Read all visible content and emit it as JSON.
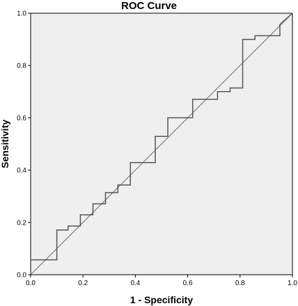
{
  "chart_data": {
    "type": "line",
    "title": "ROC Curve",
    "xlabel": "1 - Specificity",
    "ylabel": "Sensitivity",
    "xlim": [
      0.0,
      1.0
    ],
    "ylim": [
      0.0,
      1.0
    ],
    "x_ticks": [
      "0.0",
      "0.2",
      "0.4",
      "0.6",
      "0.8",
      "1.0"
    ],
    "y_ticks": [
      "0.0",
      "0.2",
      "0.4",
      "0.6",
      "0.8",
      "1.0"
    ],
    "grid": false,
    "legend": "none",
    "colors": {
      "plot_background": "#efefef",
      "curve": "#555555",
      "reference": "#808080",
      "frame": "#000000"
    },
    "series": [
      {
        "style": "step",
        "x": [
          0.0,
          0.0,
          0.1,
          0.1,
          0.143,
          0.143,
          0.19,
          0.19,
          0.238,
          0.238,
          0.286,
          0.286,
          0.333,
          0.333,
          0.381,
          0.381,
          0.476,
          0.476,
          0.524,
          0.524,
          0.619,
          0.619,
          0.714,
          0.714,
          0.762,
          0.762,
          0.81,
          0.81,
          0.857,
          0.857,
          0.952,
          0.952,
          1.0
        ],
        "y": [
          0.0,
          0.057,
          0.057,
          0.171,
          0.171,
          0.186,
          0.186,
          0.229,
          0.229,
          0.271,
          0.271,
          0.314,
          0.314,
          0.343,
          0.343,
          0.429,
          0.429,
          0.529,
          0.529,
          0.6,
          0.6,
          0.671,
          0.671,
          0.7,
          0.7,
          0.714,
          0.714,
          0.9,
          0.9,
          0.914,
          0.914,
          0.957,
          1.0
        ]
      },
      {
        "style": "reference",
        "x": [
          0.0,
          1.0
        ],
        "y": [
          0.0,
          1.0
        ]
      }
    ]
  }
}
